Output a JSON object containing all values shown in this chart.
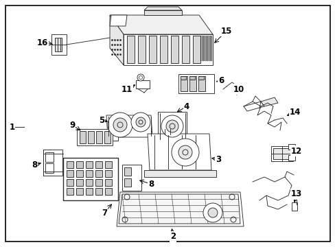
{
  "bg": "#ffffff",
  "border": "#000000",
  "lc": "#2a2a2a",
  "fig_w": 4.89,
  "fig_h": 3.6,
  "dpi": 100
}
